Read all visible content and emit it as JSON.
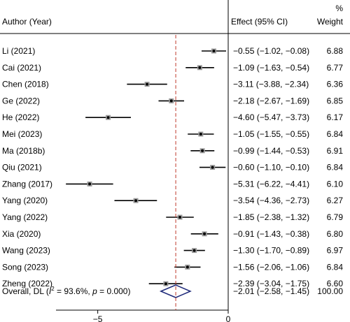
{
  "chart_data": {
    "type": "forest",
    "headers": {
      "study": "Author (Year)",
      "effect": "Effect (95% CI)",
      "weight_top": "%",
      "weight": "Weight"
    },
    "studies": [
      {
        "label": "Li (2021)",
        "effect": -0.55,
        "lower": -1.02,
        "upper": -0.08,
        "ci_text": "−0.55 (−1.02, −0.08)",
        "weight": "6.88"
      },
      {
        "label": "Cai (2021)",
        "effect": -1.09,
        "lower": -1.63,
        "upper": -0.54,
        "ci_text": "−1.09 (−1.63, −0.54)",
        "weight": "6.77"
      },
      {
        "label": "Chen (2018)",
        "effect": -3.11,
        "lower": -3.88,
        "upper": -2.34,
        "ci_text": "−3.11 (−3.88, −2.34)",
        "weight": "6.36"
      },
      {
        "label": "Ge (2022)",
        "effect": -2.18,
        "lower": -2.67,
        "upper": -1.69,
        "ci_text": "−2.18 (−2.67, −1.69)",
        "weight": "6.85"
      },
      {
        "label": "He (2022)",
        "effect": -4.6,
        "lower": -5.47,
        "upper": -3.73,
        "ci_text": "−4.60 (−5.47, −3.73)",
        "weight": "6.17"
      },
      {
        "label": "Mei (2023)",
        "effect": -1.05,
        "lower": -1.55,
        "upper": -0.55,
        "ci_text": "−1.05 (−1.55, −0.55)",
        "weight": "6.84"
      },
      {
        "label": "Ma (2018b)",
        "effect": -0.99,
        "lower": -1.44,
        "upper": -0.53,
        "ci_text": "−0.99 (−1.44, −0.53)",
        "weight": "6.91"
      },
      {
        "label": "Qiu (2021)",
        "effect": -0.6,
        "lower": -1.1,
        "upper": -0.1,
        "ci_text": "−0.60 (−1.10, −0.10)",
        "weight": "6.84"
      },
      {
        "label": "Zhang (2017)",
        "effect": -5.31,
        "lower": -6.22,
        "upper": -4.41,
        "ci_text": "−5.31 (−6.22, −4.41)",
        "weight": "6.10"
      },
      {
        "label": "Yang (2020)",
        "effect": -3.54,
        "lower": -4.36,
        "upper": -2.73,
        "ci_text": "−3.54 (−4.36, −2.73)",
        "weight": "6.27"
      },
      {
        "label": "Yang (2022)",
        "effect": -1.85,
        "lower": -2.38,
        "upper": -1.32,
        "ci_text": "−1.85 (−2.38, −1.32)",
        "weight": "6.79"
      },
      {
        "label": "Xia (2020)",
        "effect": -0.91,
        "lower": -1.43,
        "upper": -0.38,
        "ci_text": "−0.91 (−1.43, −0.38)",
        "weight": "6.80"
      },
      {
        "label": "Wang (2023)",
        "effect": -1.3,
        "lower": -1.7,
        "upper": -0.89,
        "ci_text": "−1.30 (−1.70, −0.89)",
        "weight": "6.97"
      },
      {
        "label": "Song (2023)",
        "effect": -1.56,
        "lower": -2.06,
        "upper": -1.06,
        "ci_text": "−1.56 (−2.06, −1.06)",
        "weight": "6.84"
      },
      {
        "label": "Zheng (2022)",
        "effect": -2.39,
        "lower": -3.04,
        "upper": -1.75,
        "ci_text": "−2.39 (−3.04, −1.75)",
        "weight": "6.60"
      }
    ],
    "overall": {
      "label_prefix": "Overall, DL (",
      "i_symbol": "I",
      "i_sup": "2",
      "i_value": " = 93.6%, ",
      "p_symbol": "p",
      "p_value": " = 0.000)",
      "effect": -2.01,
      "lower": -2.58,
      "upper": -1.45,
      "ci_text": "−2.01 (−2.58, −1.45)",
      "weight": "100.00"
    },
    "x_ticks": [
      {
        "value": -5,
        "label": "−5"
      },
      {
        "value": 0,
        "label": "0"
      }
    ],
    "xlim": [
      -6.6,
      0
    ],
    "null_line": 0,
    "overall_line": -2.01,
    "colors": {
      "marker": "#000000",
      "marker_box": "#9a9a9a",
      "overall_line": "#c0392b",
      "diamond": "#1f2a7a"
    }
  }
}
